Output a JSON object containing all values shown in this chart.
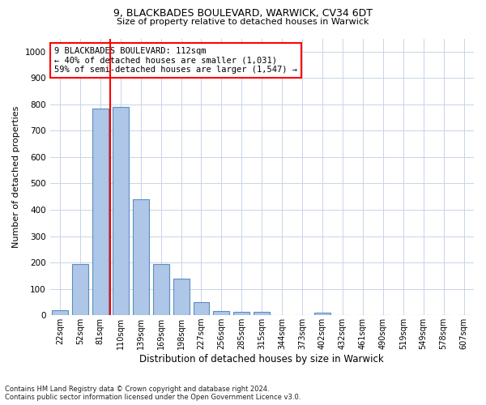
{
  "title1": "9, BLACKBADES BOULEVARD, WARWICK, CV34 6DT",
  "title2": "Size of property relative to detached houses in Warwick",
  "xlabel": "Distribution of detached houses by size in Warwick",
  "ylabel": "Number of detached properties",
  "categories": [
    "22sqm",
    "52sqm",
    "81sqm",
    "110sqm",
    "139sqm",
    "169sqm",
    "198sqm",
    "227sqm",
    "256sqm",
    "285sqm",
    "315sqm",
    "344sqm",
    "373sqm",
    "402sqm",
    "432sqm",
    "461sqm",
    "490sqm",
    "519sqm",
    "549sqm",
    "578sqm",
    "607sqm"
  ],
  "values": [
    18,
    195,
    785,
    790,
    440,
    195,
    140,
    50,
    15,
    12,
    12,
    0,
    0,
    10,
    0,
    0,
    0,
    0,
    0,
    0,
    0
  ],
  "bar_color": "#aec6e8",
  "bar_edge_color": "#5a8fc0",
  "vline_x": 2.5,
  "annotation_text": "9 BLACKBADES BOULEVARD: 112sqm\n← 40% of detached houses are smaller (1,031)\n59% of semi-detached houses are larger (1,547) →",
  "annotation_box_color": "white",
  "annotation_box_edge_color": "red",
  "vline_color": "red",
  "ylim": [
    0,
    1050
  ],
  "yticks": [
    0,
    100,
    200,
    300,
    400,
    500,
    600,
    700,
    800,
    900,
    1000
  ],
  "grid_color": "#c8d4e8",
  "background_color": "white",
  "footnote": "Contains HM Land Registry data © Crown copyright and database right 2024.\nContains public sector information licensed under the Open Government Licence v3.0."
}
